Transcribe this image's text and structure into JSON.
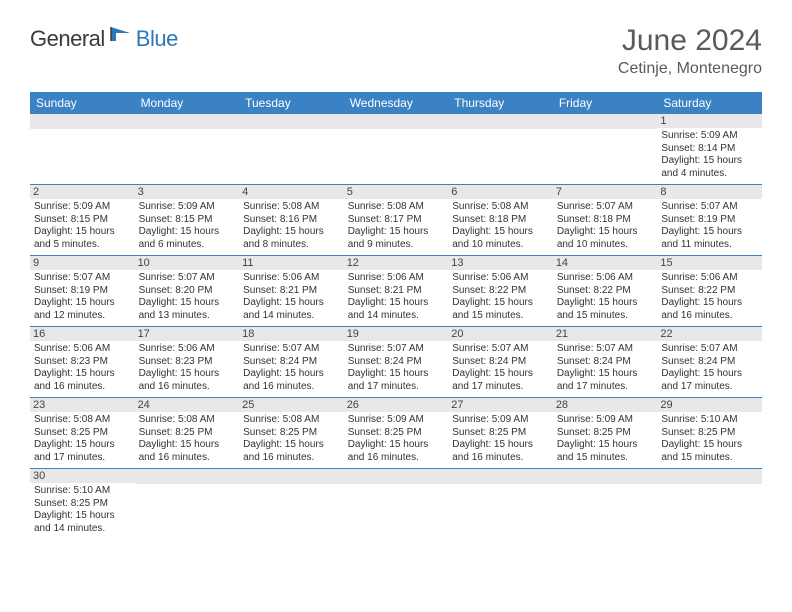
{
  "logo": {
    "general": "General",
    "blue": "Blue"
  },
  "title": "June 2024",
  "location": "Cetinje, Montenegro",
  "colors": {
    "header_bg": "#3b82c4",
    "header_text": "#ffffff",
    "daynum_bg": "#e8e8e8",
    "cell_border": "#3b82c4",
    "title_color": "#5a5a5a",
    "logo_blue": "#2f78b7",
    "logo_gray": "#3a3a3a"
  },
  "daysOfWeek": [
    "Sunday",
    "Monday",
    "Tuesday",
    "Wednesday",
    "Thursday",
    "Friday",
    "Saturday"
  ],
  "weeks": [
    [
      {
        "empty": true
      },
      {
        "empty": true
      },
      {
        "empty": true
      },
      {
        "empty": true
      },
      {
        "empty": true
      },
      {
        "empty": true
      },
      {
        "num": "1",
        "sunrise": "Sunrise: 5:09 AM",
        "sunset": "Sunset: 8:14 PM",
        "daylight1": "Daylight: 15 hours",
        "daylight2": "and 4 minutes."
      }
    ],
    [
      {
        "num": "2",
        "sunrise": "Sunrise: 5:09 AM",
        "sunset": "Sunset: 8:15 PM",
        "daylight1": "Daylight: 15 hours",
        "daylight2": "and 5 minutes."
      },
      {
        "num": "3",
        "sunrise": "Sunrise: 5:09 AM",
        "sunset": "Sunset: 8:15 PM",
        "daylight1": "Daylight: 15 hours",
        "daylight2": "and 6 minutes."
      },
      {
        "num": "4",
        "sunrise": "Sunrise: 5:08 AM",
        "sunset": "Sunset: 8:16 PM",
        "daylight1": "Daylight: 15 hours",
        "daylight2": "and 8 minutes."
      },
      {
        "num": "5",
        "sunrise": "Sunrise: 5:08 AM",
        "sunset": "Sunset: 8:17 PM",
        "daylight1": "Daylight: 15 hours",
        "daylight2": "and 9 minutes."
      },
      {
        "num": "6",
        "sunrise": "Sunrise: 5:08 AM",
        "sunset": "Sunset: 8:18 PM",
        "daylight1": "Daylight: 15 hours",
        "daylight2": "and 10 minutes."
      },
      {
        "num": "7",
        "sunrise": "Sunrise: 5:07 AM",
        "sunset": "Sunset: 8:18 PM",
        "daylight1": "Daylight: 15 hours",
        "daylight2": "and 10 minutes."
      },
      {
        "num": "8",
        "sunrise": "Sunrise: 5:07 AM",
        "sunset": "Sunset: 8:19 PM",
        "daylight1": "Daylight: 15 hours",
        "daylight2": "and 11 minutes."
      }
    ],
    [
      {
        "num": "9",
        "sunrise": "Sunrise: 5:07 AM",
        "sunset": "Sunset: 8:19 PM",
        "daylight1": "Daylight: 15 hours",
        "daylight2": "and 12 minutes."
      },
      {
        "num": "10",
        "sunrise": "Sunrise: 5:07 AM",
        "sunset": "Sunset: 8:20 PM",
        "daylight1": "Daylight: 15 hours",
        "daylight2": "and 13 minutes."
      },
      {
        "num": "11",
        "sunrise": "Sunrise: 5:06 AM",
        "sunset": "Sunset: 8:21 PM",
        "daylight1": "Daylight: 15 hours",
        "daylight2": "and 14 minutes."
      },
      {
        "num": "12",
        "sunrise": "Sunrise: 5:06 AM",
        "sunset": "Sunset: 8:21 PM",
        "daylight1": "Daylight: 15 hours",
        "daylight2": "and 14 minutes."
      },
      {
        "num": "13",
        "sunrise": "Sunrise: 5:06 AM",
        "sunset": "Sunset: 8:22 PM",
        "daylight1": "Daylight: 15 hours",
        "daylight2": "and 15 minutes."
      },
      {
        "num": "14",
        "sunrise": "Sunrise: 5:06 AM",
        "sunset": "Sunset: 8:22 PM",
        "daylight1": "Daylight: 15 hours",
        "daylight2": "and 15 minutes."
      },
      {
        "num": "15",
        "sunrise": "Sunrise: 5:06 AM",
        "sunset": "Sunset: 8:22 PM",
        "daylight1": "Daylight: 15 hours",
        "daylight2": "and 16 minutes."
      }
    ],
    [
      {
        "num": "16",
        "sunrise": "Sunrise: 5:06 AM",
        "sunset": "Sunset: 8:23 PM",
        "daylight1": "Daylight: 15 hours",
        "daylight2": "and 16 minutes."
      },
      {
        "num": "17",
        "sunrise": "Sunrise: 5:06 AM",
        "sunset": "Sunset: 8:23 PM",
        "daylight1": "Daylight: 15 hours",
        "daylight2": "and 16 minutes."
      },
      {
        "num": "18",
        "sunrise": "Sunrise: 5:07 AM",
        "sunset": "Sunset: 8:24 PM",
        "daylight1": "Daylight: 15 hours",
        "daylight2": "and 16 minutes."
      },
      {
        "num": "19",
        "sunrise": "Sunrise: 5:07 AM",
        "sunset": "Sunset: 8:24 PM",
        "daylight1": "Daylight: 15 hours",
        "daylight2": "and 17 minutes."
      },
      {
        "num": "20",
        "sunrise": "Sunrise: 5:07 AM",
        "sunset": "Sunset: 8:24 PM",
        "daylight1": "Daylight: 15 hours",
        "daylight2": "and 17 minutes."
      },
      {
        "num": "21",
        "sunrise": "Sunrise: 5:07 AM",
        "sunset": "Sunset: 8:24 PM",
        "daylight1": "Daylight: 15 hours",
        "daylight2": "and 17 minutes."
      },
      {
        "num": "22",
        "sunrise": "Sunrise: 5:07 AM",
        "sunset": "Sunset: 8:24 PM",
        "daylight1": "Daylight: 15 hours",
        "daylight2": "and 17 minutes."
      }
    ],
    [
      {
        "num": "23",
        "sunrise": "Sunrise: 5:08 AM",
        "sunset": "Sunset: 8:25 PM",
        "daylight1": "Daylight: 15 hours",
        "daylight2": "and 17 minutes."
      },
      {
        "num": "24",
        "sunrise": "Sunrise: 5:08 AM",
        "sunset": "Sunset: 8:25 PM",
        "daylight1": "Daylight: 15 hours",
        "daylight2": "and 16 minutes."
      },
      {
        "num": "25",
        "sunrise": "Sunrise: 5:08 AM",
        "sunset": "Sunset: 8:25 PM",
        "daylight1": "Daylight: 15 hours",
        "daylight2": "and 16 minutes."
      },
      {
        "num": "26",
        "sunrise": "Sunrise: 5:09 AM",
        "sunset": "Sunset: 8:25 PM",
        "daylight1": "Daylight: 15 hours",
        "daylight2": "and 16 minutes."
      },
      {
        "num": "27",
        "sunrise": "Sunrise: 5:09 AM",
        "sunset": "Sunset: 8:25 PM",
        "daylight1": "Daylight: 15 hours",
        "daylight2": "and 16 minutes."
      },
      {
        "num": "28",
        "sunrise": "Sunrise: 5:09 AM",
        "sunset": "Sunset: 8:25 PM",
        "daylight1": "Daylight: 15 hours",
        "daylight2": "and 15 minutes."
      },
      {
        "num": "29",
        "sunrise": "Sunrise: 5:10 AM",
        "sunset": "Sunset: 8:25 PM",
        "daylight1": "Daylight: 15 hours",
        "daylight2": "and 15 minutes."
      }
    ],
    [
      {
        "num": "30",
        "sunrise": "Sunrise: 5:10 AM",
        "sunset": "Sunset: 8:25 PM",
        "daylight1": "Daylight: 15 hours",
        "daylight2": "and 14 minutes."
      },
      {
        "empty": true
      },
      {
        "empty": true
      },
      {
        "empty": true
      },
      {
        "empty": true
      },
      {
        "empty": true
      },
      {
        "empty": true
      }
    ]
  ]
}
